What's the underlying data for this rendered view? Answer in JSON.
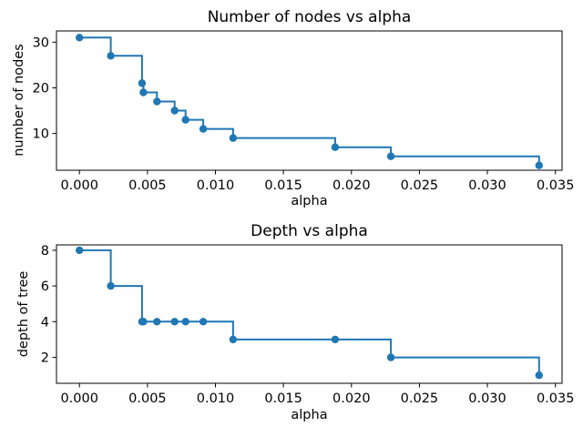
{
  "figure": {
    "background": "#ffffff",
    "accent_color": "#1f77b4",
    "axis_color": "#000000"
  },
  "chart_data": [
    {
      "type": "line",
      "drawstyle": "steps-post",
      "marker": "o",
      "title": "Number of nodes vs alpha",
      "xlabel": "alpha",
      "ylabel": "number of nodes",
      "color": "#1f77b4",
      "grid": false,
      "x": [
        0.0,
        0.0023,
        0.0046,
        0.0047,
        0.0057,
        0.007,
        0.0078,
        0.0091,
        0.0113,
        0.0188,
        0.0229,
        0.0338
      ],
      "y": [
        31,
        27,
        21,
        19,
        17,
        15,
        13,
        11,
        9,
        7,
        5,
        3
      ],
      "xlim": [
        -0.00169,
        0.03549
      ],
      "ylim": [
        1.95,
        32.45
      ],
      "xtick_values": [
        0.0,
        0.005,
        0.01,
        0.015,
        0.02,
        0.025,
        0.03,
        0.035
      ],
      "xtick_labels": [
        "0.000",
        "0.005",
        "0.010",
        "0.015",
        "0.020",
        "0.025",
        "0.030",
        "0.035"
      ],
      "ytick_values": [
        10,
        20,
        30
      ],
      "ytick_labels": [
        "10",
        "20",
        "30"
      ]
    },
    {
      "type": "line",
      "drawstyle": "steps-post",
      "marker": "o",
      "title": "Depth vs alpha",
      "xlabel": "alpha",
      "ylabel": "depth of tree",
      "color": "#1f77b4",
      "grid": false,
      "x": [
        0.0,
        0.0023,
        0.0046,
        0.0047,
        0.0057,
        0.007,
        0.0078,
        0.0091,
        0.0113,
        0.0188,
        0.0229,
        0.0338
      ],
      "y": [
        8,
        6,
        4,
        4,
        4,
        4,
        4,
        4,
        3,
        3,
        2,
        1
      ],
      "xlim": [
        -0.00169,
        0.03549
      ],
      "ylim": [
        0.55,
        8.3
      ],
      "xtick_values": [
        0.0,
        0.005,
        0.01,
        0.015,
        0.02,
        0.025,
        0.03,
        0.035
      ],
      "xtick_labels": [
        "0.000",
        "0.005",
        "0.010",
        "0.015",
        "0.020",
        "0.025",
        "0.030",
        "0.035"
      ],
      "ytick_values": [
        2,
        4,
        6,
        8
      ],
      "ytick_labels": [
        "2",
        "4",
        "6",
        "8"
      ]
    }
  ]
}
